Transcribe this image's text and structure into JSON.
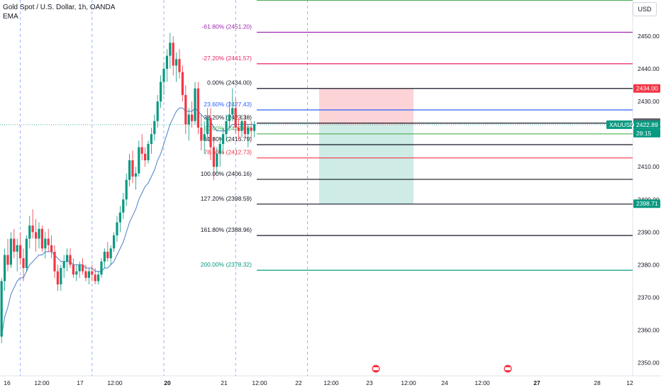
{
  "header": {
    "symbol_line": "Gold Spot / U.S. Dollar, 1h, OANDA",
    "indicator": "EMA"
  },
  "currency_button": "USD",
  "chart_data": {
    "type": "candlestick",
    "symbol": "XAUUSD",
    "y_axis": {
      "min": 2346,
      "max": 2455,
      "ticks": [
        2350,
        2360,
        2370,
        2380,
        2390,
        2400,
        2410,
        2420,
        2430,
        2440,
        2450
      ]
    },
    "x_ticks": [
      {
        "label": "16",
        "i": 0
      },
      {
        "label": "12:00",
        "i": 12
      },
      {
        "label": "17",
        "i": 24
      },
      {
        "label": "12:00",
        "i": 36
      },
      {
        "label": "20",
        "bold": true,
        "i": 48
      },
      {
        "label": "21",
        "i": 72
      },
      {
        "label": "12:00",
        "i": 84
      },
      {
        "label": "22",
        "i": 96
      },
      {
        "label": "12:00",
        "i": 108
      },
      {
        "label": "23",
        "i": 120
      },
      {
        "label": "12:00",
        "i": 132
      },
      {
        "label": "24",
        "i": 144
      },
      {
        "label": "12:00",
        "i": 156
      },
      {
        "label": "27",
        "bold": true,
        "i": 168
      },
      {
        "label": "28",
        "i": 192
      },
      {
        "label": "12",
        "i": 204
      }
    ],
    "fib_levels": [
      {
        "label": "-61.80% (2451.20)",
        "value": 2451.2,
        "color": "#9c27b0"
      },
      {
        "label": "-27.20% (2441.57)",
        "value": 2441.57,
        "color": "#e91e63"
      },
      {
        "label": "0.00% (2434.00)",
        "value": 2434.0,
        "color": "#131722"
      },
      {
        "label": "23.60% (2427.43)",
        "value": 2427.43,
        "color": "#2962ff"
      },
      {
        "label": "38.20% (2423.38)",
        "value": 2423.38,
        "color": "#131722"
      },
      {
        "label": "50.00% (2420.08)",
        "value": 2420.08,
        "color": "#4caf50"
      },
      {
        "label": "61.80% (2416.79)",
        "value": 2416.79,
        "color": "#131722"
      },
      {
        "label": "78.60% (2412.73)",
        "value": 2412.73,
        "color": "#f23645"
      },
      {
        "label": "100.00% (2406.16)",
        "value": 2406.16,
        "color": "#131722"
      },
      {
        "label": "127.20% (2398.59)",
        "value": 2398.59,
        "color": "#131722"
      },
      {
        "label": "161.80% (2388.96)",
        "value": 2388.96,
        "color": "#131722"
      },
      {
        "label": "200.00% (2378.32)",
        "value": 2378.32,
        "color": "#089981"
      }
    ],
    "position": {
      "entry": 2422.89,
      "stop": 2434.0,
      "target": 2398.71
    },
    "price_tags": [
      {
        "label": "2434.00",
        "value": 2434.0,
        "bg": "#f23645",
        "fg": "#ffffff"
      },
      {
        "label": "2423.53",
        "value": 2423.53,
        "bg": "#5d606b",
        "fg": "#ffffff"
      },
      {
        "label": "2422.89",
        "value": 2422.89,
        "bg": "#089981",
        "fg": "#ffffff"
      },
      {
        "label": "28:15",
        "value": 2420.3,
        "bg": "#089981",
        "fg": "#ffffff"
      },
      {
        "label": "2398.71",
        "value": 2398.71,
        "bg": "#089981",
        "fg": "#ffffff"
      }
    ],
    "last_price_label": "XAUUSD",
    "colors": {
      "up": "#089981",
      "down": "#f23645",
      "ema": "#4a7ec9"
    },
    "candles": [
      [
        2358,
        2376,
        2356,
        2375
      ],
      [
        2375,
        2385,
        2372,
        2383
      ],
      [
        2383,
        2388,
        2378,
        2380
      ],
      [
        2380,
        2390,
        2379,
        2388
      ],
      [
        2388,
        2391,
        2382,
        2384
      ],
      [
        2384,
        2388,
        2378,
        2386
      ],
      [
        2386,
        2390,
        2380,
        2382
      ],
      [
        2382,
        2385,
        2375,
        2379
      ],
      [
        2379,
        2389,
        2378,
        2388
      ],
      [
        2388,
        2395,
        2385,
        2392
      ],
      [
        2392,
        2397,
        2388,
        2390
      ],
      [
        2390,
        2394,
        2384,
        2388
      ],
      [
        2388,
        2393,
        2385,
        2391
      ],
      [
        2391,
        2392,
        2384,
        2385
      ],
      [
        2385,
        2390,
        2382,
        2388
      ],
      [
        2388,
        2391,
        2384,
        2386
      ],
      [
        2386,
        2389,
        2382,
        2384
      ],
      [
        2384,
        2386,
        2376,
        2378
      ],
      [
        2378,
        2380,
        2372,
        2374
      ],
      [
        2374,
        2380,
        2372,
        2379
      ],
      [
        2379,
        2383,
        2376,
        2381
      ],
      [
        2381,
        2385,
        2378,
        2383
      ],
      [
        2383,
        2385,
        2379,
        2380
      ],
      [
        2380,
        2382,
        2376,
        2377
      ],
      [
        2377,
        2380,
        2375,
        2378
      ],
      [
        2378,
        2381,
        2376,
        2380
      ],
      [
        2380,
        2382,
        2377,
        2378
      ],
      [
        2378,
        2380,
        2375,
        2376
      ],
      [
        2376,
        2379,
        2374,
        2378
      ],
      [
        2378,
        2380,
        2375,
        2377
      ],
      [
        2377,
        2379,
        2374,
        2375
      ],
      [
        2375,
        2378,
        2374,
        2377
      ],
      [
        2377,
        2382,
        2376,
        2381
      ],
      [
        2381,
        2385,
        2379,
        2384
      ],
      [
        2384,
        2387,
        2381,
        2382
      ],
      [
        2382,
        2386,
        2380,
        2385
      ],
      [
        2385,
        2390,
        2384,
        2389
      ],
      [
        2389,
        2395,
        2387,
        2393
      ],
      [
        2393,
        2398,
        2390,
        2396
      ],
      [
        2396,
        2402,
        2394,
        2400
      ],
      [
        2400,
        2408,
        2398,
        2406
      ],
      [
        2406,
        2414,
        2404,
        2412
      ],
      [
        2412,
        2415,
        2405,
        2407
      ],
      [
        2407,
        2410,
        2403,
        2408
      ],
      [
        2408,
        2418,
        2407,
        2416
      ],
      [
        2416,
        2420,
        2412,
        2414
      ],
      [
        2414,
        2416,
        2410,
        2412
      ],
      [
        2412,
        2418,
        2411,
        2417
      ],
      [
        2417,
        2422,
        2414,
        2420
      ],
      [
        2420,
        2426,
        2418,
        2424
      ],
      [
        2424,
        2432,
        2422,
        2430
      ],
      [
        2430,
        2438,
        2428,
        2436
      ],
      [
        2436,
        2442,
        2432,
        2440
      ],
      [
        2440,
        2446,
        2436,
        2444
      ],
      [
        2444,
        2451,
        2440,
        2448
      ],
      [
        2448,
        2450,
        2438,
        2441
      ],
      [
        2441,
        2445,
        2436,
        2443
      ],
      [
        2443,
        2446,
        2437,
        2439
      ],
      [
        2439,
        2441,
        2430,
        2432
      ],
      [
        2432,
        2435,
        2420,
        2423
      ],
      [
        2423,
        2428,
        2418,
        2426
      ],
      [
        2426,
        2430,
        2422,
        2424
      ],
      [
        2424,
        2436,
        2423,
        2434
      ],
      [
        2434,
        2436,
        2420,
        2422
      ],
      [
        2422,
        2426,
        2415,
        2418
      ],
      [
        2418,
        2424,
        2414,
        2420
      ],
      [
        2420,
        2428,
        2418,
        2425
      ],
      [
        2425,
        2428,
        2412,
        2416
      ],
      [
        2416,
        2419,
        2406,
        2410
      ],
      [
        2410,
        2416,
        2408,
        2414
      ],
      [
        2414,
        2419,
        2410,
        2417
      ],
      [
        2417,
        2422,
        2414,
        2420
      ],
      [
        2420,
        2426,
        2418,
        2424
      ],
      [
        2424,
        2430,
        2422,
        2426
      ],
      [
        2426,
        2434,
        2424,
        2428
      ],
      [
        2428,
        2431,
        2420,
        2422
      ],
      [
        2422,
        2425,
        2418,
        2421
      ],
      [
        2421,
        2426,
        2419,
        2424
      ],
      [
        2424,
        2426,
        2419,
        2420
      ],
      [
        2420,
        2423,
        2416,
        2422
      ],
      [
        2422,
        2424,
        2418,
        2421
      ],
      [
        2421,
        2424,
        2419,
        2423
      ]
    ],
    "ema": [
      2358,
      2364,
      2367,
      2371,
      2373,
      2375,
      2376,
      2376,
      2378,
      2380,
      2381,
      2382,
      2383,
      2383,
      2384,
      2384,
      2384,
      2383,
      2382,
      2381,
      2381,
      2381,
      2381,
      2380,
      2380,
      2380,
      2380,
      2379,
      2379,
      2379,
      2378,
      2378,
      2378,
      2379,
      2379,
      2380,
      2381,
      2383,
      2385,
      2387,
      2390,
      2393,
      2395,
      2397,
      2400,
      2402,
      2404,
      2405,
      2407,
      2409,
      2412,
      2414,
      2417,
      2420,
      2423,
      2425,
      2427,
      2428,
      2428,
      2427,
      2427,
      2427,
      2428,
      2427,
      2426,
      2425,
      2425,
      2424,
      2422,
      2421,
      2421,
      2421,
      2421,
      2422,
      2423,
      2423,
      2423,
      2423,
      2423,
      2423,
      2423,
      2423
    ]
  }
}
